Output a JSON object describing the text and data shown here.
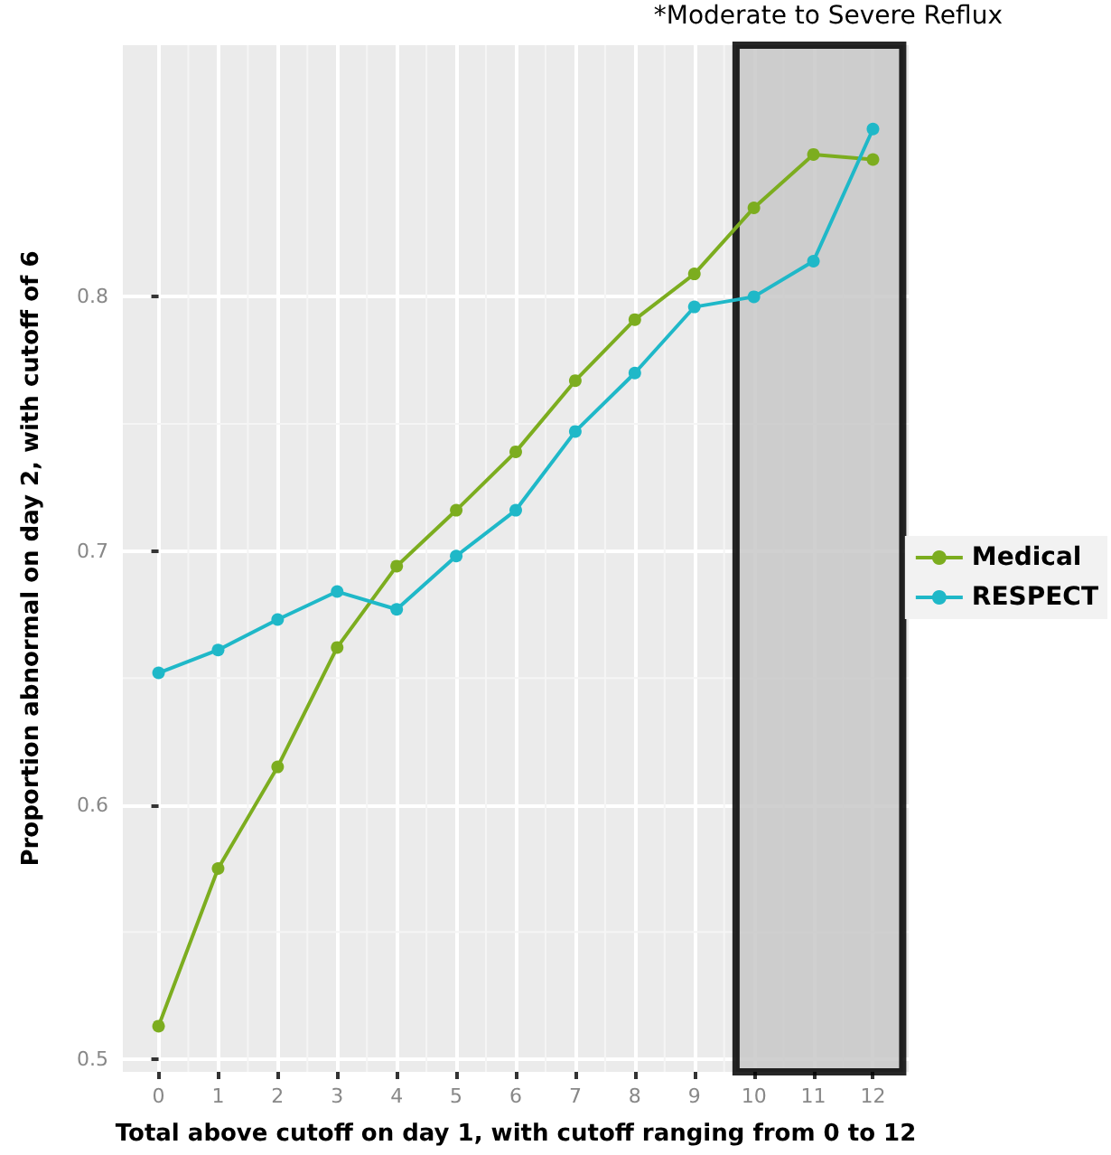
{
  "chart_data": {
    "type": "line",
    "xlabel": "Total above cutoff on day 1, with cutoff ranging from 0 to 12",
    "ylabel": "Proportion abnormal on day 2, with cutoff of 6",
    "annotations": [
      "*Moderate to Severe Reflux"
    ],
    "x": [
      0,
      1,
      2,
      3,
      4,
      5,
      6,
      7,
      8,
      9,
      10,
      11,
      12
    ],
    "series": [
      {
        "name": "Medical",
        "color": "#7cad1f",
        "values": [
          0.513,
          0.575,
          0.615,
          0.662,
          0.694,
          0.716,
          0.739,
          0.767,
          0.791,
          0.809,
          0.835,
          0.856,
          0.854
        ]
      },
      {
        "name": "RESPECT",
        "color": "#1fb8c8",
        "values": [
          0.652,
          0.661,
          0.673,
          0.684,
          0.677,
          0.698,
          0.716,
          0.747,
          0.77,
          0.796,
          0.8,
          0.814,
          0.866
        ]
      }
    ],
    "xlim": [
      -0.6,
      12.6
    ],
    "xticks": [
      0,
      1,
      2,
      3,
      4,
      5,
      6,
      7,
      8,
      9,
      10,
      11,
      12
    ],
    "ylim": [
      0.495,
      0.899
    ],
    "yticks": [
      0.5,
      0.6,
      0.7,
      0.8
    ],
    "bands": [
      {
        "axis": "x",
        "from": 9.7,
        "to": 12.5,
        "color": "#c8c8c8"
      }
    ],
    "grid": true,
    "legend": "right",
    "marker": "circle",
    "line_style": "solid"
  }
}
